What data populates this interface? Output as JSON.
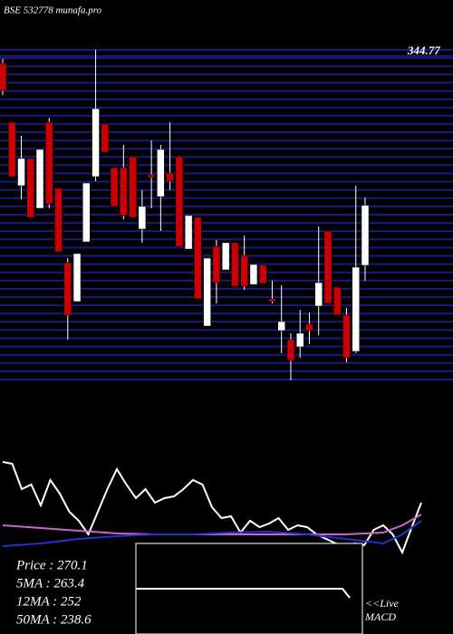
{
  "chart_data": {
    "type": "candlestick",
    "title": "BSE 532778 munafa.pro",
    "ylim": [
      185,
      350
    ],
    "yticks": [
      344.77
    ],
    "up_color": "#ffffff",
    "down_color": "#cc0000",
    "grid_color": "#1a1a80",
    "open": [
      339,
      310.4,
      279.6,
      292.8,
      268.6,
      310.4,
      278.3,
      242.2,
      223.3,
      252.3,
      284,
      309.5,
      288.4,
      288.4,
      293.7,
      258.5,
      284.9,
      274.3,
      285.8,
      293.7,
      248.8,
      264.2,
      211.4,
      250.1,
      238.7,
      251.9,
      245.7,
      231.6,
      240.9,
      224.6,
      209.2,
      204.8,
      201.3,
      212.3,
      221.1,
      257.6,
      230.3,
      216.7,
      199.1,
      240.9
    ],
    "high": [
      341.2,
      310.4,
      303.8,
      292.8,
      297.2,
      312.6,
      278.3,
      244.4,
      246.6,
      280.9,
      345.6,
      309.5,
      288.4,
      299.4,
      293.7,
      277.4,
      301.6,
      299.4,
      310.4,
      293.7,
      265.1,
      264.2,
      244.4,
      253.2,
      251.9,
      251.9,
      255.4,
      241.3,
      240.9,
      233.4,
      231.2,
      207.9,
      219.3,
      218,
      259.8,
      257.6,
      230.3,
      220.2,
      279.6,
      273.9
    ],
    "low": [
      323.6,
      284,
      273,
      264.2,
      268.6,
      268.6,
      247.5,
      204.8,
      223.3,
      252.3,
      281.8,
      295.9,
      269.5,
      263.3,
      264.2,
      251.9,
      268.6,
      257.6,
      277.4,
      250.1,
      248.8,
      224.6,
      211.4,
      222.4,
      238.7,
      230.8,
      229,
      231.6,
      232.1,
      222.4,
      198.2,
      185,
      196,
      202.6,
      207,
      222.4,
      216.7,
      193.8,
      198.2,
      233.4
    ],
    "close": [
      325.8,
      284,
      292.8,
      264.2,
      297.2,
      270.8,
      247.5,
      216.7,
      246.6,
      280.9,
      317,
      295.9,
      269.5,
      265.1,
      264.2,
      269.5,
      283.6,
      297.2,
      281.8,
      250.1,
      265.1,
      224.6,
      244.4,
      232.5,
      251.9,
      230.8,
      230.8,
      241.3,
      232.1,
      223.3,
      213.6,
      194.7,
      207.9,
      209.2,
      232.5,
      222.4,
      216.7,
      196,
      240,
      270.1
    ],
    "indicator": {
      "ylim": [
        0,
        110
      ],
      "xlim": [
        0,
        44
      ],
      "series": [
        {
          "name": "MACD",
          "color": "#ffffff",
          "x": [
            0,
            1,
            2,
            3,
            4,
            5,
            6,
            7,
            8,
            9,
            10,
            11,
            12,
            13,
            14,
            15,
            16,
            17,
            18,
            19,
            20,
            21,
            22,
            23,
            24,
            25,
            26,
            27,
            28,
            29,
            30,
            31,
            32,
            33,
            34,
            35,
            36,
            37,
            38,
            39,
            40,
            41,
            42,
            43,
            44
          ],
          "values": [
            100,
            98,
            70,
            75,
            52,
            80,
            65,
            45,
            35,
            20,
            45,
            70,
            92,
            75,
            60,
            70,
            55,
            60,
            62,
            70,
            80,
            75,
            50,
            38,
            40,
            22,
            35,
            28,
            32,
            38,
            25,
            30,
            28,
            20,
            15,
            10,
            5,
            10,
            8,
            25,
            30,
            20,
            0,
            28,
            55
          ]
        },
        {
          "name": "Signal",
          "color": "#cc66cc",
          "x": [
            0,
            4,
            8,
            12,
            16,
            20,
            24,
            28,
            32,
            36,
            40,
            42,
            44
          ],
          "values": [
            30,
            27,
            24,
            21,
            20,
            20,
            20,
            20,
            20,
            20,
            22,
            30,
            42
          ]
        },
        {
          "name": "Zero",
          "color": "#2233cc",
          "x": [
            0,
            4,
            8,
            12,
            16,
            20,
            24,
            28,
            32,
            36,
            40,
            42,
            44
          ],
          "values": [
            7,
            10,
            15,
            18,
            20,
            20,
            22,
            23,
            20,
            15,
            10,
            20,
            35
          ]
        }
      ]
    },
    "legend_lines": [
      "Price   :  270.1",
      "5MA   : 263.4",
      "12MA : 252",
      "50MA : 238.6"
    ],
    "live_label": "<<Live",
    "indicator_label": "MACD"
  }
}
